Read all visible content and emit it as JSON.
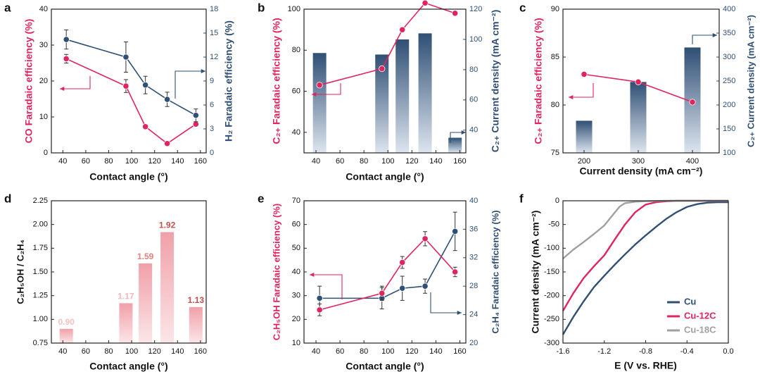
{
  "colors": {
    "pink": "#e0245e",
    "blue": "#2f4f74",
    "gray": "#a0a0a0",
    "black": "#111111",
    "bar_d_light": "#f1b7b7",
    "bar_d_mid": "#e07f7f",
    "bar_d_dark": "#c0504d",
    "bar_d_faint": "#f4c2c2"
  },
  "chart_data": [
    {
      "panel": "a",
      "type": "line",
      "title": "",
      "xlabel": "Contact angle (°)",
      "ylabel_left": "CO Faradaic efficiency (%)",
      "ylabel_right": "H₂ Faradaic efficiency (%)",
      "xlim": [
        30,
        165
      ],
      "xticks": [
        "40",
        "60",
        "80",
        "100",
        "120",
        "140",
        "160"
      ],
      "ylim_left": [
        0,
        40
      ],
      "yticks_left": [
        "0",
        "10",
        "20",
        "30",
        "40"
      ],
      "ylim_right": [
        0,
        18
      ],
      "yticks_right": [
        "0",
        "3",
        "6",
        "9",
        "12",
        "15",
        "18"
      ],
      "x": [
        43,
        95,
        112,
        131,
        156
      ],
      "series": [
        {
          "name": "CO FE",
          "axis": "left",
          "color": "pink",
          "values": [
            26.2,
            18.6,
            7.3,
            2.6,
            8.0
          ],
          "err": [
            1.2,
            1.8,
            0.5,
            0.4,
            0.6
          ]
        },
        {
          "name": "H2 FE",
          "axis": "right",
          "color": "blue",
          "values": [
            14.2,
            12.0,
            8.5,
            6.7,
            4.7
          ],
          "err": [
            1.2,
            1.9,
            1.1,
            0.9,
            0.8
          ]
        }
      ]
    },
    {
      "panel": "b",
      "type": "bar+line",
      "xlabel": "Contact angle (°)",
      "ylabel_left": "C₂₊ Faradaic efficiency (%)",
      "ylabel_right": "C₂₊ Current density (mA cm⁻²)",
      "xlim": [
        30,
        165
      ],
      "xticks": [
        "40",
        "60",
        "80",
        "100",
        "120",
        "140",
        "160"
      ],
      "ylim_left": [
        30,
        100
      ],
      "yticks_left": [
        "40",
        "60",
        "80",
        "100"
      ],
      "ylim_right": [
        25,
        120
      ],
      "yticks_right": [
        "40",
        "60",
        "80",
        "100",
        "120"
      ],
      "x": [
        43,
        95,
        112,
        131,
        156
      ],
      "bars": {
        "axis": "right",
        "values": [
          91,
          90,
          100,
          104,
          35
        ]
      },
      "series": [
        {
          "name": "C2+ FE",
          "axis": "left",
          "color": "pink",
          "values": [
            63,
            71,
            90,
            103,
            98
          ]
        }
      ]
    },
    {
      "panel": "c",
      "type": "bar+line",
      "xlabel": "Current density (mA cm⁻²)",
      "ylabel_left": "C₂₊ Faradaic efficiency (%)",
      "ylabel_right": "C₂₊ Current density (mA cm⁻²)",
      "categories": [
        "200",
        "300",
        "400"
      ],
      "ylim_left": [
        75,
        90
      ],
      "yticks_left": [
        "75",
        "80",
        "85",
        "90"
      ],
      "ylim_right": [
        100,
        400
      ],
      "yticks_right": [
        "100",
        "150",
        "200",
        "250",
        "300",
        "350",
        "400"
      ],
      "bars": {
        "axis": "right",
        "values": [
          167,
          248,
          320
        ]
      },
      "series": [
        {
          "name": "C2+ FE",
          "axis": "left",
          "color": "pink",
          "values": [
            83.2,
            82.4,
            80.3
          ]
        }
      ]
    },
    {
      "panel": "d",
      "type": "bar",
      "xlabel": "Contact angle (°)",
      "ylabel": "C₂H₅OH / C₂H₄",
      "xlim": [
        30,
        165
      ],
      "xticks": [
        "40",
        "60",
        "80",
        "100",
        "120",
        "140",
        "160"
      ],
      "ylim": [
        0.75,
        2.25
      ],
      "yticks": [
        "0.75",
        "1.00",
        "1.25",
        "1.50",
        "1.75",
        "2.00",
        "2.25"
      ],
      "x": [
        43,
        95,
        112,
        131,
        156
      ],
      "values": [
        0.9,
        1.17,
        1.59,
        1.92,
        1.13
      ],
      "labels": [
        "0.90",
        "1.17",
        "1.59",
        "1.92",
        "1.13"
      ]
    },
    {
      "panel": "e",
      "type": "line",
      "xlabel": "Contact angle (°)",
      "ylabel_left": "C₂H₅OH Faradaic efficiency (%)",
      "ylabel_right": "C₂H₄ Faradaic efficiency (%)",
      "xlim": [
        30,
        165
      ],
      "xticks": [
        "40",
        "60",
        "80",
        "100",
        "120",
        "140",
        "160"
      ],
      "ylim_left": [
        10,
        70
      ],
      "yticks_left": [
        "10",
        "20",
        "30",
        "40",
        "50",
        "60",
        "70"
      ],
      "ylim_right": [
        20,
        40
      ],
      "yticks_right": [
        "20",
        "24",
        "28",
        "32",
        "36",
        "40"
      ],
      "x": [
        43,
        95,
        112,
        131,
        156
      ],
      "series": [
        {
          "name": "C2H5OH FE",
          "axis": "left",
          "color": "pink",
          "values": [
            24,
            31,
            44,
            54,
            40
          ],
          "err": [
            2.5,
            3,
            2.5,
            3,
            2
          ]
        },
        {
          "name": "C2H4 FE",
          "axis": "right",
          "color": "blue",
          "values": [
            26.3,
            26.3,
            27.7,
            28.0,
            35.7
          ],
          "err": [
            1.7,
            1.5,
            1.7,
            1.0,
            2.7
          ]
        }
      ]
    },
    {
      "panel": "f",
      "type": "line",
      "xlabel": "E (V vs. RHE)",
      "ylabel": "Current density (mA cm⁻²)",
      "xlim": [
        -1.6,
        0.0
      ],
      "xticks": [
        "-1.6",
        "-1.2",
        "-0.8",
        "-0.4",
        "0.0"
      ],
      "ylim": [
        -300,
        0
      ],
      "yticks": [
        "0",
        "-50",
        "-100",
        "-150",
        "-200",
        "-250",
        "-300"
      ],
      "series": [
        {
          "name": "Cu",
          "color": "blue",
          "x": [
            -1.6,
            -1.5,
            -1.4,
            -1.3,
            -1.2,
            -1.1,
            -1.0,
            -0.9,
            -0.8,
            -0.7,
            -0.6,
            -0.5,
            -0.4,
            -0.3,
            -0.2,
            -0.1,
            0.0
          ],
          "y": [
            -282,
            -245,
            -212,
            -182,
            -158,
            -135,
            -113,
            -92,
            -73,
            -55,
            -38,
            -24,
            -13,
            -7,
            -4,
            -3,
            -3
          ]
        },
        {
          "name": "Cu-12C",
          "color": "pink",
          "x": [
            -1.6,
            -1.5,
            -1.4,
            -1.3,
            -1.2,
            -1.1,
            -1.0,
            -0.9,
            -0.8,
            -0.7,
            -0.6,
            -0.5,
            -0.4,
            -0.2,
            0.0
          ],
          "y": [
            -232,
            -195,
            -163,
            -138,
            -115,
            -82,
            -50,
            -24,
            -8,
            -3,
            -1,
            0,
            0,
            0,
            0
          ]
        },
        {
          "name": "Cu-18C",
          "color": "gray",
          "x": [
            -1.6,
            -1.5,
            -1.4,
            -1.3,
            -1.2,
            -1.1,
            -1.05,
            -1.0,
            -0.9,
            -0.8,
            -0.6,
            -0.4,
            0.0
          ],
          "y": [
            -122,
            -103,
            -87,
            -70,
            -52,
            -25,
            -12,
            -5,
            -2,
            -1,
            0,
            0,
            0
          ]
        }
      ],
      "legend": [
        "Cu",
        "Cu-12C",
        "Cu-18C"
      ]
    }
  ],
  "panel_labels": [
    "a",
    "b",
    "c",
    "d",
    "e",
    "f"
  ],
  "special_labels": {
    "b_xaxis_label": "Contact angle (°)",
    "f_vs": "vs."
  }
}
